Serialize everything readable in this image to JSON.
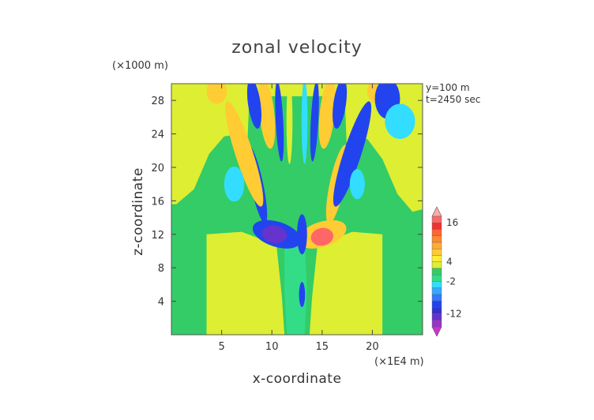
{
  "chart_data": {
    "type": "heatmap",
    "title": "zonal velocity",
    "xlabel": "x-coordinate",
    "ylabel": "z-coordinate",
    "x_unit": "(×1E4 m)",
    "y_unit": "(×1000 m)",
    "annotations": [
      "y=100 m",
      "t=2450 sec"
    ],
    "x_ticks": [
      "5",
      "10",
      "15",
      "20"
    ],
    "y_ticks": [
      "4",
      "8",
      "12",
      "16",
      "20",
      "24",
      "28"
    ],
    "xlim": [
      0,
      25
    ],
    "ylim": [
      0,
      30
    ],
    "colorbar_labels": [
      "16",
      "4",
      "-2",
      "-12"
    ],
    "colorbar_levels": [
      -18,
      -16,
      -14,
      -12,
      -10,
      -8,
      -6,
      -4,
      -2,
      0,
      2,
      4,
      6,
      8,
      10,
      12,
      14,
      16,
      18,
      20
    ],
    "colorbar_colors": [
      "#cc33cc",
      "#9933cc",
      "#6633cc",
      "#3333cc",
      "#2244ee",
      "#3377ff",
      "#33aaff",
      "#33ddff",
      "#33dd88",
      "#33cc66",
      "#ddee33",
      "#ffee33",
      "#ffcc33",
      "#ffaa33",
      "#ff8833",
      "#ff6633",
      "#ee3333",
      "#ff6666",
      "#ffaaaa"
    ],
    "regions": [
      {
        "name": "background",
        "value": 1
      },
      {
        "name": "upper-yellow-plume",
        "value": 3
      },
      {
        "name": "lower-yellow-column",
        "value": 3
      },
      {
        "name": "central-cyan-column",
        "value": -2
      },
      {
        "name": "upper-cyan-jet",
        "value": -3
      },
      {
        "name": "wing-orange",
        "value": 6
      },
      {
        "name": "wing-blue",
        "value": -9
      },
      {
        "name": "core-magenta",
        "value": -14
      },
      {
        "name": "core-pink",
        "value": 17
      }
    ]
  }
}
